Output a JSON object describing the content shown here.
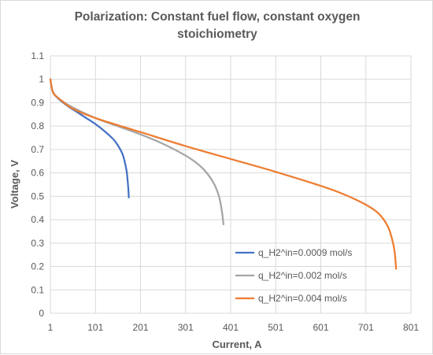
{
  "chart_data": {
    "type": "line",
    "title": "Polarization: Constant fuel flow, constant oxygen stoichiometry",
    "xlabel": "Current, A",
    "ylabel": "Voltage, V",
    "xlim": [
      1,
      801
    ],
    "ylim": [
      0,
      1.1
    ],
    "x_ticks": [
      "1",
      "101",
      "201",
      "301",
      "401",
      "501",
      "601",
      "701",
      "801"
    ],
    "y_ticks": [
      "0",
      "0.1",
      "0.2",
      "0.3",
      "0.4",
      "0.5",
      "0.6",
      "0.7",
      "0.8",
      "0.9",
      "1",
      "1.1"
    ],
    "grid": true,
    "legend_position": "bottom-right",
    "series": [
      {
        "name": "q_H2^in=0.0009 mol/s",
        "color": "#4472C4",
        "points": [
          [
            1,
            1.0
          ],
          [
            5,
            0.955
          ],
          [
            10,
            0.935
          ],
          [
            20,
            0.915
          ],
          [
            40,
            0.885
          ],
          [
            60,
            0.86
          ],
          [
            80,
            0.835
          ],
          [
            100,
            0.81
          ],
          [
            120,
            0.78
          ],
          [
            140,
            0.745
          ],
          [
            150,
            0.72
          ],
          [
            160,
            0.685
          ],
          [
            165,
            0.655
          ],
          [
            170,
            0.61
          ],
          [
            172,
            0.575
          ],
          [
            174,
            0.53
          ],
          [
            175,
            0.495
          ]
        ]
      },
      {
        "name": "q_H2^in=0.002 mol/s",
        "color": "#A5A5A5",
        "points": [
          [
            1,
            1.0
          ],
          [
            5,
            0.955
          ],
          [
            10,
            0.935
          ],
          [
            25,
            0.91
          ],
          [
            50,
            0.88
          ],
          [
            100,
            0.835
          ],
          [
            150,
            0.8
          ],
          [
            200,
            0.765
          ],
          [
            250,
            0.725
          ],
          [
            300,
            0.675
          ],
          [
            330,
            0.635
          ],
          [
            350,
            0.595
          ],
          [
            365,
            0.55
          ],
          [
            375,
            0.5
          ],
          [
            380,
            0.455
          ],
          [
            383,
            0.415
          ],
          [
            385,
            0.38
          ]
        ]
      },
      {
        "name": "q_H2^in=0.004 mol/s",
        "color": "#ED7D31",
        "points": [
          [
            1,
            1.0
          ],
          [
            5,
            0.955
          ],
          [
            10,
            0.935
          ],
          [
            25,
            0.91
          ],
          [
            50,
            0.875
          ],
          [
            100,
            0.835
          ],
          [
            200,
            0.775
          ],
          [
            300,
            0.715
          ],
          [
            400,
            0.66
          ],
          [
            500,
            0.605
          ],
          [
            600,
            0.545
          ],
          [
            650,
            0.51
          ],
          [
            700,
            0.465
          ],
          [
            730,
            0.425
          ],
          [
            750,
            0.37
          ],
          [
            760,
            0.31
          ],
          [
            765,
            0.26
          ],
          [
            768,
            0.19
          ]
        ]
      }
    ]
  }
}
